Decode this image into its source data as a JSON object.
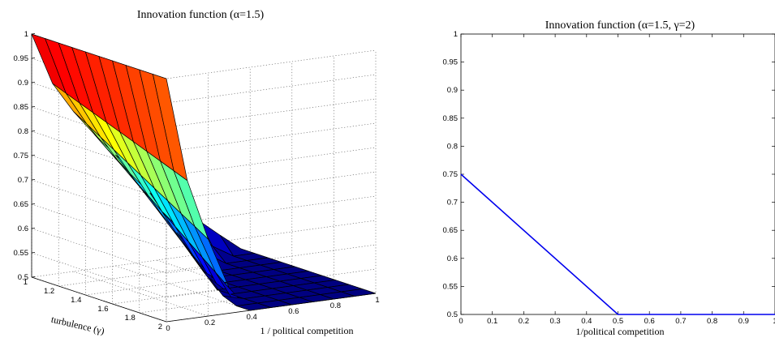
{
  "chart_data": [
    {
      "type": "surface",
      "title": "Innovation function (α=1.5)",
      "xlabel": "1 / political competition",
      "ylabel": "turbulence (γ)",
      "zlabel": "",
      "xlim": [
        0,
        1
      ],
      "ylim": [
        1,
        2
      ],
      "zlim": [
        0.5,
        1
      ],
      "x": [
        0,
        0.1,
        0.2,
        0.3,
        0.4,
        0.5,
        0.6,
        0.7,
        0.8,
        0.9,
        1.0
      ],
      "y": [
        1.0,
        1.1,
        1.2,
        1.3,
        1.4,
        1.5,
        1.6,
        1.7,
        1.8,
        1.9,
        2.0
      ],
      "z_formula_note": "",
      "x_ticks": [
        "0",
        "0.2",
        "0.4",
        "0.6",
        "0.8",
        "1"
      ],
      "y_ticks": [
        "1",
        "1.2",
        "1.4",
        "1.6",
        "1.8",
        "2"
      ],
      "z_ticks": [
        "0.5",
        "0.55",
        "0.6",
        "0.65",
        "0.7",
        "0.75",
        "0.8",
        "0.85",
        "0.9",
        "0.95",
        "1"
      ],
      "colormap": "jet",
      "grid": true
    },
    {
      "type": "line",
      "title": "Innovation function (α=1.5, γ=2)",
      "xlabel": "1/political competition",
      "ylabel": "",
      "xlim": [
        0,
        1
      ],
      "ylim": [
        0.5,
        1
      ],
      "series": [
        {
          "x": [
            0,
            0.5,
            1.0
          ],
          "y": [
            0.75,
            0.5,
            0.5
          ]
        }
      ],
      "x_ticks": [
        "0",
        "0.1",
        "0.2",
        "0.3",
        "0.4",
        "0.5",
        "0.6",
        "0.7",
        "0.8",
        "0.9",
        "1"
      ],
      "y_ticks": [
        "0.5",
        "0.55",
        "0.6",
        "0.65",
        "0.7",
        "0.75",
        "0.8",
        "0.85",
        "0.9",
        "0.95",
        "1"
      ],
      "line_color": "#0000ee",
      "grid": false
    }
  ]
}
